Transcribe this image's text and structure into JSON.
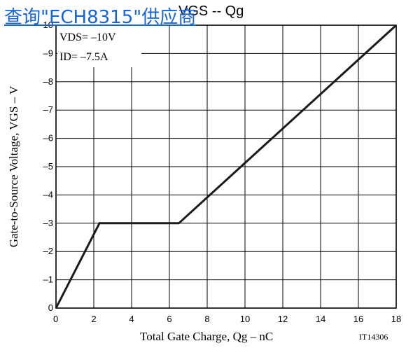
{
  "watermark_link": "查询\"ECH8315\"供应商",
  "chart_data": {
    "type": "line",
    "title": "VGS -- Qg",
    "xlabel": "Total Gate Charge, Qg  –  nC",
    "ylabel": "Gate-to-Source Voltage, VGS  –  V",
    "figure_code": "IT14306",
    "conditions": [
      "VDS= –10V",
      "ID= –7.5A"
    ],
    "xlim": [
      0,
      18
    ],
    "ylim": [
      0,
      -10
    ],
    "x_ticks": [
      "0",
      "2",
      "4",
      "6",
      "8",
      "10",
      "12",
      "14",
      "16",
      "18"
    ],
    "y_ticks": [
      "0",
      "–1",
      "–2",
      "–3",
      "–4",
      "–5",
      "–6",
      "–7",
      "–8",
      "–9",
      "–10"
    ],
    "grid": true,
    "series": [
      {
        "x": [
          0,
          2.3,
          6.5,
          18
        ],
        "y": [
          0,
          -3,
          -3,
          -10
        ]
      }
    ]
  }
}
